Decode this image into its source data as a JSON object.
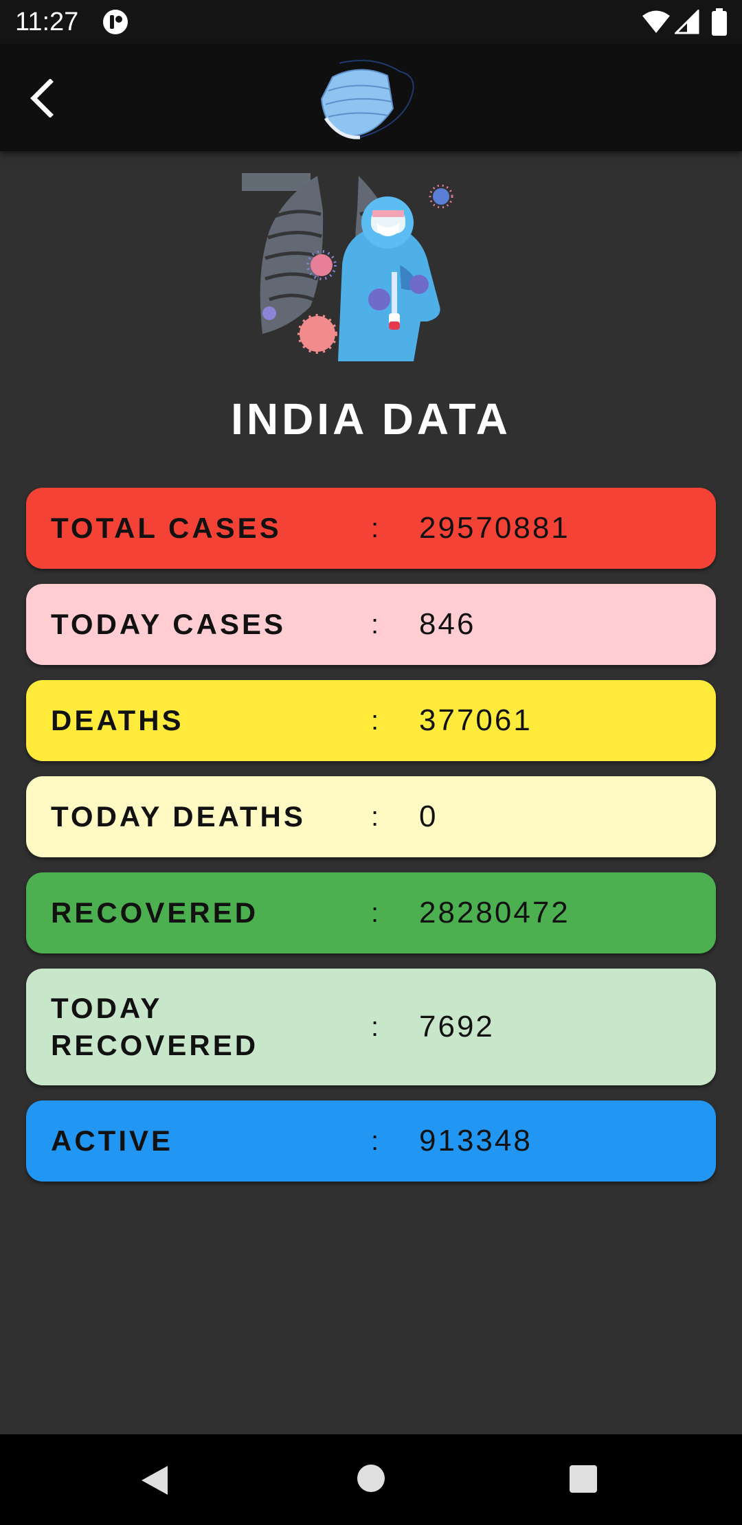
{
  "status_bar": {
    "time": "11:27"
  },
  "app_bar": {
    "back_icon": "chevron-left-icon",
    "logo": "face-mask-logo"
  },
  "hero": {
    "illustration": "health-worker-with-lungs-and-virus"
  },
  "page": {
    "title": "INDIA DATA"
  },
  "stats": [
    {
      "label": "TOTAL CASES",
      "separator": ":",
      "value": "29570881",
      "color": "#f44336"
    },
    {
      "label": "TODAY CASES",
      "separator": ":",
      "value": "846",
      "color": "#ffcdd2"
    },
    {
      "label": "DEATHS",
      "separator": ":",
      "value": "377061",
      "color": "#ffeb3b"
    },
    {
      "label": "TODAY DEATHS",
      "separator": ":",
      "value": "0",
      "color": "#fff9c4"
    },
    {
      "label": "RECOVERED",
      "separator": ":",
      "value": "28280472",
      "color": "#4caf50"
    },
    {
      "label": "TODAY RECOVERED",
      "separator": ":",
      "value": "7692",
      "color": "#c8e6c9"
    },
    {
      "label": "ACTIVE",
      "separator": ":",
      "value": "913348",
      "color": "#2196f3"
    }
  ],
  "colors": {
    "background": "#303030",
    "app_bar": "#0f0f0f",
    "title_text": "#ffffff"
  },
  "nav_bar": {
    "back_icon": "triangle-back-icon",
    "home_icon": "circle-home-icon",
    "recents_icon": "square-recents-icon"
  }
}
